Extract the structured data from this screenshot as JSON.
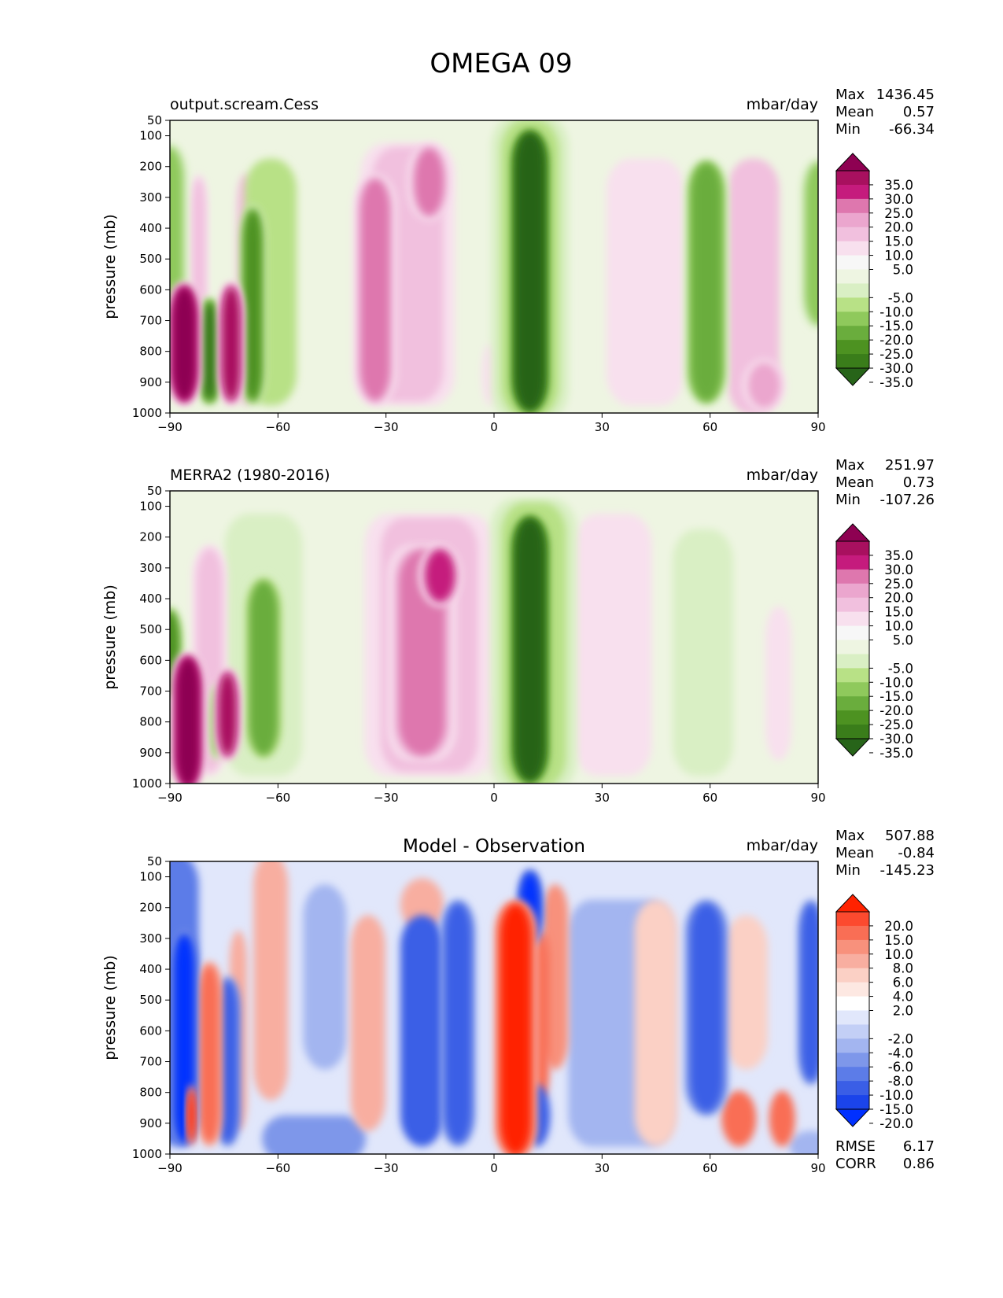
{
  "figure": {
    "title": "OMEGA 09"
  },
  "chart_data": [
    {
      "type": "contour",
      "title": "",
      "left_title": "output.scream.Cess",
      "units": "mbar/day",
      "xlabel": "",
      "ylabel": "pressure (mb)",
      "xlim": [
        -90,
        90
      ],
      "ylim": [
        1000,
        50
      ],
      "xticks": [
        "−90",
        "−60",
        "−30",
        "0",
        "30",
        "60",
        "90"
      ],
      "yticks": [
        "50",
        "100",
        "200",
        "300",
        "400",
        "500",
        "600",
        "700",
        "800",
        "900",
        "1000"
      ],
      "stats": {
        "max_label": "Max",
        "max": "1436.45",
        "mean_label": "Mean",
        "mean": "0.57",
        "min_label": "Min",
        "min": "-66.34"
      },
      "colorbar": {
        "labels": [
          "35.0",
          "30.0",
          "25.0",
          "20.0",
          "15.0",
          "10.0",
          "5.0",
          "-5.0",
          "-10.0",
          "-15.0",
          "-20.0",
          "-25.0",
          "-30.0",
          "-35.0"
        ],
        "colors": [
          "#8e0152",
          "#a8105f",
          "#c51b7d",
          "#de77ae",
          "#eba6ce",
          "#f1c0de",
          "#f8e0ee",
          "#f7f7f7",
          "#eef5e2",
          "#d9efc4",
          "#b8e186",
          "#8fc95c",
          "#6aad3d",
          "#4d9221",
          "#3a7d1a",
          "#276419"
        ]
      },
      "features": [
        {
          "lat": -90,
          "p_top": 150,
          "p_bot": 700,
          "half_width": 4,
          "value": -18
        },
        {
          "lat": -86,
          "p_top": 600,
          "p_bot": 950,
          "half_width": 4,
          "value": 38
        },
        {
          "lat": -79,
          "p_top": 650,
          "p_bot": 950,
          "half_width": 3,
          "value": -32
        },
        {
          "lat": -82,
          "p_top": 250,
          "p_bot": 700,
          "half_width": 2,
          "value": 12
        },
        {
          "lat": -73,
          "p_top": 600,
          "p_bot": 950,
          "half_width": 3,
          "value": 32
        },
        {
          "lat": -69,
          "p_top": 250,
          "p_bot": 950,
          "half_width": 2,
          "value": 10
        },
        {
          "lat": -67,
          "p_top": 350,
          "p_bot": 950,
          "half_width": 3,
          "value": -25
        },
        {
          "lat": -62,
          "p_top": 200,
          "p_bot": 950,
          "half_width": 6,
          "value": -10
        },
        {
          "lat": -33,
          "p_top": 250,
          "p_bot": 950,
          "half_width": 5,
          "value": 22
        },
        {
          "lat": -24,
          "p_top": 150,
          "p_bot": 950,
          "half_width": 11,
          "value": 12
        },
        {
          "lat": -18,
          "p_top": 150,
          "p_bot": 350,
          "half_width": 5,
          "value": 20
        },
        {
          "lat": -1,
          "p_top": 800,
          "p_bot": 950,
          "half_width": 2,
          "value": 6
        },
        {
          "lat": 10,
          "p_top": 100,
          "p_bot": 980,
          "half_width": 5,
          "value": -40
        },
        {
          "lat": 10,
          "p_top": 60,
          "p_bot": 1000,
          "half_width": 9,
          "value": -12
        },
        {
          "lat": 42,
          "p_top": 200,
          "p_bot": 950,
          "half_width": 9,
          "value": 8
        },
        {
          "lat": 59,
          "p_top": 200,
          "p_bot": 950,
          "half_width": 5,
          "value": -24
        },
        {
          "lat": 72,
          "p_top": 200,
          "p_bot": 980,
          "half_width": 6,
          "value": 10
        },
        {
          "lat": 75,
          "p_top": 850,
          "p_bot": 970,
          "half_width": 5,
          "value": 18
        },
        {
          "lat": 90,
          "p_top": 200,
          "p_bot": 700,
          "half_width": 4,
          "value": -16
        }
      ]
    },
    {
      "type": "contour",
      "title": "",
      "left_title": "MERRA2 (1980-2016)",
      "units": "mbar/day",
      "xlabel": "",
      "ylabel": "pressure (mb)",
      "xlim": [
        -90,
        90
      ],
      "ylim": [
        1000,
        50
      ],
      "xticks": [
        "−90",
        "−60",
        "−30",
        "0",
        "30",
        "60",
        "90"
      ],
      "yticks": [
        "50",
        "100",
        "200",
        "300",
        "400",
        "500",
        "600",
        "700",
        "800",
        "900",
        "1000"
      ],
      "stats": {
        "max_label": "Max",
        "max": "251.97",
        "mean_label": "Mean",
        "mean": "0.73",
        "min_label": "Min",
        "min": "-107.26"
      },
      "colorbar": {
        "labels": [
          "35.0",
          "30.0",
          "25.0",
          "20.0",
          "15.0",
          "10.0",
          "5.0",
          "-5.0",
          "-10.0",
          "-15.0",
          "-20.0",
          "-25.0",
          "-30.0",
          "-35.0"
        ],
        "colors": [
          "#8e0152",
          "#a8105f",
          "#c51b7d",
          "#de77ae",
          "#eba6ce",
          "#f1c0de",
          "#f8e0ee",
          "#f7f7f7",
          "#eef5e2",
          "#d9efc4",
          "#b8e186",
          "#8fc95c",
          "#6aad3d",
          "#4d9221",
          "#3a7d1a",
          "#276419"
        ]
      },
      "features": [
        {
          "lat": -90,
          "p_top": 450,
          "p_bot": 700,
          "half_width": 3,
          "value": -25
        },
        {
          "lat": -85,
          "p_top": 600,
          "p_bot": 1000,
          "half_width": 4,
          "value": 38
        },
        {
          "lat": -79,
          "p_top": 250,
          "p_bot": 950,
          "half_width": 4,
          "value": 14
        },
        {
          "lat": -74,
          "p_top": 650,
          "p_bot": 900,
          "half_width": 3,
          "value": 32
        },
        {
          "lat": -77,
          "p_top": 700,
          "p_bot": 900,
          "half_width": 2,
          "value": -18
        },
        {
          "lat": -64,
          "p_top": 150,
          "p_bot": 950,
          "half_width": 9,
          "value": -8
        },
        {
          "lat": -64,
          "p_top": 350,
          "p_bot": 900,
          "half_width": 5,
          "value": -22
        },
        {
          "lat": -18,
          "p_top": 150,
          "p_bot": 950,
          "half_width": 15,
          "value": 14
        },
        {
          "lat": -20,
          "p_top": 250,
          "p_bot": 900,
          "half_width": 8,
          "value": 22
        },
        {
          "lat": -15,
          "p_top": 250,
          "p_bot": 400,
          "half_width": 5,
          "value": 26
        },
        {
          "lat": 0,
          "p_top": 750,
          "p_bot": 950,
          "half_width": 2,
          "value": 8
        },
        {
          "lat": 10,
          "p_top": 150,
          "p_bot": 980,
          "half_width": 5,
          "value": -40
        },
        {
          "lat": 11,
          "p_top": 100,
          "p_bot": 1000,
          "half_width": 10,
          "value": -14
        },
        {
          "lat": 33,
          "p_top": 150,
          "p_bot": 950,
          "half_width": 9,
          "value": 8
        },
        {
          "lat": 58,
          "p_top": 200,
          "p_bot": 950,
          "half_width": 7,
          "value": -8
        },
        {
          "lat": 79,
          "p_top": 450,
          "p_bot": 900,
          "half_width": 3,
          "value": 7
        }
      ]
    },
    {
      "type": "contour",
      "title": "Model - Observation",
      "left_title": "",
      "units": "mbar/day",
      "xlabel": "",
      "ylabel": "pressure (mb)",
      "xlim": [
        -90,
        90
      ],
      "ylim": [
        1000,
        50
      ],
      "xticks": [
        "−90",
        "−60",
        "−30",
        "0",
        "30",
        "60",
        "90"
      ],
      "yticks": [
        "50",
        "100",
        "200",
        "300",
        "400",
        "500",
        "600",
        "700",
        "800",
        "900",
        "1000"
      ],
      "stats": {
        "max_label": "Max",
        "max": "507.88",
        "mean_label": "Mean",
        "mean": "-0.84",
        "min_label": "Min",
        "min": "-145.23"
      },
      "extra_stats": {
        "rmse_label": "RMSE",
        "rmse": "6.17",
        "corr_label": "CORR",
        "corr": "0.86"
      },
      "colorbar": {
        "labels": [
          "20.0",
          "15.0",
          "10.0",
          "8.0",
          "6.0",
          "4.0",
          "2.0",
          "-2.0",
          "-4.0",
          "-6.0",
          "-8.0",
          "-10.0",
          "-15.0",
          "-20.0"
        ],
        "colors": [
          "#ff2200",
          "#fc4a2f",
          "#f96e55",
          "#f8917c",
          "#f8aea0",
          "#fbd0c5",
          "#fde8e2",
          "#ffffff",
          "#e1e7fb",
          "#c3cff6",
          "#a3b5f0",
          "#7e97ea",
          "#5c7ce8",
          "#3a5ee6",
          "#1b44ea",
          "#0030ff"
        ]
      },
      "features": [
        {
          "lat": -88,
          "p_top": 50,
          "p_bot": 950,
          "half_width": 5,
          "value": -9
        },
        {
          "lat": -86,
          "p_top": 300,
          "p_bot": 950,
          "half_width": 3,
          "value": -22
        },
        {
          "lat": -84,
          "p_top": 800,
          "p_bot": 950,
          "half_width": 1,
          "value": 22
        },
        {
          "lat": -79,
          "p_top": 400,
          "p_bot": 950,
          "half_width": 3,
          "value": 14
        },
        {
          "lat": -74,
          "p_top": 450,
          "p_bot": 950,
          "half_width": 3,
          "value": -12
        },
        {
          "lat": -71,
          "p_top": 300,
          "p_bot": 900,
          "half_width": 2,
          "value": 6
        },
        {
          "lat": -62,
          "p_top": 50,
          "p_bot": 800,
          "half_width": 4,
          "value": 7
        },
        {
          "lat": -47,
          "p_top": 150,
          "p_bot": 700,
          "half_width": 5,
          "value": -4
        },
        {
          "lat": -50,
          "p_top": 900,
          "p_bot": 1000,
          "half_width": 12,
          "value": -6
        },
        {
          "lat": -35,
          "p_top": 250,
          "p_bot": 900,
          "half_width": 4,
          "value": 6
        },
        {
          "lat": -20,
          "p_top": 250,
          "p_bot": 950,
          "half_width": 5,
          "value": -11
        },
        {
          "lat": -20,
          "p_top": 130,
          "p_bot": 250,
          "half_width": 5,
          "value": 6
        },
        {
          "lat": -10,
          "p_top": 200,
          "p_bot": 950,
          "half_width": 4,
          "value": -14
        },
        {
          "lat": 6,
          "p_top": 200,
          "p_bot": 990,
          "half_width": 5,
          "value": 22
        },
        {
          "lat": 10,
          "p_top": 100,
          "p_bot": 300,
          "half_width": 3,
          "value": -20
        },
        {
          "lat": 13,
          "p_top": 300,
          "p_bot": 800,
          "half_width": 2,
          "value": 10
        },
        {
          "lat": 17,
          "p_top": 150,
          "p_bot": 700,
          "half_width": 3,
          "value": 8
        },
        {
          "lat": 12,
          "p_top": 800,
          "p_bot": 950,
          "half_width": 3,
          "value": -10
        },
        {
          "lat": 35,
          "p_top": 200,
          "p_bot": 950,
          "half_width": 12,
          "value": -4
        },
        {
          "lat": 45,
          "p_top": 200,
          "p_bot": 950,
          "half_width": 5,
          "value": 4
        },
        {
          "lat": 59,
          "p_top": 200,
          "p_bot": 850,
          "half_width": 5,
          "value": -12
        },
        {
          "lat": 70,
          "p_top": 250,
          "p_bot": 700,
          "half_width": 5,
          "value": 5
        },
        {
          "lat": 68,
          "p_top": 820,
          "p_bot": 950,
          "half_width": 4,
          "value": 10
        },
        {
          "lat": 80,
          "p_top": 820,
          "p_bot": 950,
          "half_width": 3,
          "value": 10
        },
        {
          "lat": 88,
          "p_top": 200,
          "p_bot": 750,
          "half_width": 3,
          "value": -14
        },
        {
          "lat": 88,
          "p_top": 950,
          "p_bot": 1000,
          "half_width": 5,
          "value": -5
        }
      ]
    }
  ]
}
